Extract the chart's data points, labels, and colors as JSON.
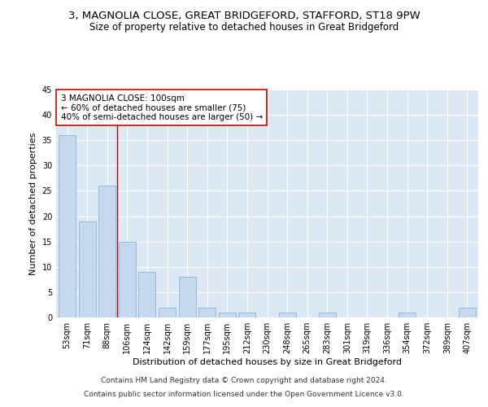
{
  "title_line1": "3, MAGNOLIA CLOSE, GREAT BRIDGEFORD, STAFFORD, ST18 9PW",
  "title_line2": "Size of property relative to detached houses in Great Bridgeford",
  "xlabel": "Distribution of detached houses by size in Great Bridgeford",
  "ylabel": "Number of detached properties",
  "categories": [
    "53sqm",
    "71sqm",
    "88sqm",
    "106sqm",
    "124sqm",
    "142sqm",
    "159sqm",
    "177sqm",
    "195sqm",
    "212sqm",
    "230sqm",
    "248sqm",
    "265sqm",
    "283sqm",
    "301sqm",
    "319sqm",
    "336sqm",
    "354sqm",
    "372sqm",
    "389sqm",
    "407sqm"
  ],
  "values": [
    36,
    19,
    26,
    15,
    9,
    2,
    8,
    2,
    1,
    1,
    0,
    1,
    0,
    1,
    0,
    0,
    0,
    1,
    0,
    0,
    2
  ],
  "bar_color": "#c5d8ed",
  "bar_edge_color": "#7aadd4",
  "background_color": "#dce9f5",
  "grid_color": "#ffffff",
  "annotation_text": "3 MAGNOLIA CLOSE: 100sqm\n← 60% of detached houses are smaller (75)\n40% of semi-detached houses are larger (50) →",
  "annotation_box_color": "#ffffff",
  "annotation_box_edge": "#cc0000",
  "vline_x": 2.5,
  "vline_color": "#aa0000",
  "ylim": [
    0,
    45
  ],
  "yticks": [
    0,
    5,
    10,
    15,
    20,
    25,
    30,
    35,
    40,
    45
  ],
  "footer_line1": "Contains HM Land Registry data © Crown copyright and database right 2024.",
  "footer_line2": "Contains public sector information licensed under the Open Government Licence v3.0.",
  "title_fontsize": 9.5,
  "subtitle_fontsize": 8.5,
  "axis_label_fontsize": 8,
  "tick_fontsize": 7,
  "annotation_fontsize": 7.5,
  "footer_fontsize": 6.5
}
